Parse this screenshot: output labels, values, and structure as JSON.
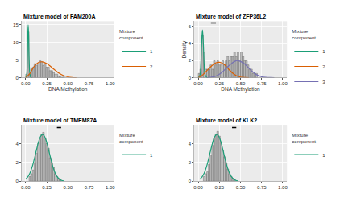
{
  "chart_data": [
    {
      "type": "histogram",
      "title": "Mixture model of FAM200A",
      "x_label": "DNA Methylation",
      "bins": [
        0,
        0.02,
        0.04,
        0.06,
        0.08,
        0.1,
        0.12,
        0.14,
        0.16,
        0.18,
        0.2,
        0.22,
        0.24,
        0.26,
        0.28,
        0.3,
        0.32,
        0.34,
        0.36,
        0.38,
        0.4,
        0.42,
        0.44,
        0.46
      ],
      "counts": [
        1,
        13,
        1,
        2.5,
        3,
        4,
        3.5,
        4,
        5,
        4.5,
        3.5,
        4,
        3,
        3,
        2,
        2,
        1.5,
        1,
        1,
        0.5,
        0.5,
        0,
        0.5
      ],
      "color": "#bdbdbd",
      "legend_title": "Mixture component",
      "series": [
        {
          "name": "1",
          "color": "#1b9e77",
          "x": [
            0,
            0.01,
            0.02,
            0.025,
            0.03,
            0.035,
            0.04,
            0.05,
            0.06,
            0.08
          ],
          "values": [
            0,
            0.5,
            6,
            12,
            15,
            12,
            6,
            1,
            0.1,
            0
          ]
        },
        {
          "name": "2",
          "color": "#d95f02",
          "x": [
            0,
            0.05,
            0.1,
            0.15,
            0.2,
            0.25,
            0.3,
            0.35,
            0.4,
            0.45,
            0.5,
            0.55,
            0.6
          ],
          "values": [
            0,
            1.2,
            3.2,
            4.3,
            4.5,
            4.0,
            3.1,
            2.1,
            1.2,
            0.6,
            0.25,
            0.08,
            0
          ]
        }
      ],
      "xlim": [
        -0.05,
        1.05
      ],
      "xticks": [
        {
          "value": 0,
          "label": "0.00"
        },
        {
          "value": 0.25,
          "label": "0.25"
        },
        {
          "value": 0.5,
          "label": "0.50"
        },
        {
          "value": 0.75,
          "label": "0.75"
        },
        {
          "value": 1,
          "label": "1.00"
        }
      ],
      "ylim": [
        0,
        16
      ],
      "yticks": [
        0,
        5,
        10,
        15
      ],
      "grid": true,
      "legend": "right"
    },
    {
      "type": "histogram",
      "title": "Mixture model of ZFP36L2",
      "x_label": "DNA Methylation",
      "y_label": "Density",
      "bins": [
        0,
        0.02,
        0.04,
        0.06,
        0.08,
        0.1,
        0.12,
        0.14,
        0.16,
        0.18,
        0.2,
        0.22,
        0.24,
        0.26,
        0.28,
        0.3,
        0.32,
        0.34,
        0.36,
        0.38,
        0.4,
        0.42,
        0.44,
        0.46,
        0.48,
        0.5,
        0.52,
        0.54,
        0.56,
        0.58,
        0.6,
        0.62,
        0.64,
        0.66,
        0.68,
        0.7
      ],
      "counts": [
        0.5,
        1,
        5,
        3,
        1,
        1,
        1,
        1.5,
        1,
        2,
        1.5,
        2,
        1.5,
        1.5,
        2,
        1.5,
        2,
        2.5,
        2,
        2.5,
        2.5,
        3,
        2.5,
        3,
        2,
        3,
        2.5,
        2,
        2,
        1.5,
        1,
        1,
        0.5,
        0.5,
        0.5
      ],
      "color": "#bdbdbd",
      "legend_title": "Mixture component",
      "series": [
        {
          "name": "1",
          "color": "#1b9e77",
          "x": [
            0,
            0.02,
            0.03,
            0.04,
            0.05,
            0.06,
            0.07,
            0.08,
            0.1,
            0.12
          ],
          "values": [
            0,
            0.3,
            1.5,
            4,
            5.6,
            4,
            1.5,
            0.4,
            0.02,
            0
          ]
        },
        {
          "name": "2",
          "color": "#d95f02",
          "x": [
            0,
            0.05,
            0.1,
            0.15,
            0.2,
            0.25,
            0.3,
            0.35,
            0.4,
            0.45,
            0.5,
            0.55,
            0.6
          ],
          "values": [
            0,
            0.3,
            0.8,
            1.3,
            1.7,
            1.8,
            1.6,
            1.1,
            0.6,
            0.25,
            0.08,
            0.02,
            0
          ]
        },
        {
          "name": "3",
          "color": "#7570b3",
          "x": [
            0.1,
            0.15,
            0.2,
            0.25,
            0.3,
            0.35,
            0.4,
            0.45,
            0.5,
            0.55,
            0.6,
            0.65,
            0.7,
            0.75,
            0.8,
            0.85,
            0.9
          ],
          "values": [
            0,
            0.05,
            0.15,
            0.4,
            0.8,
            1.3,
            1.7,
            2.0,
            1.9,
            1.6,
            1.1,
            0.65,
            0.3,
            0.12,
            0.04,
            0.01,
            0
          ]
        }
      ],
      "interval": {
        "x": [
          0.15,
          0.21
        ],
        "y": 6.4
      },
      "xlim": [
        -0.05,
        1.05
      ],
      "xticks": [
        {
          "value": 0,
          "label": "0.00"
        },
        {
          "value": 0.25,
          "label": "0.25"
        },
        {
          "value": 0.5,
          "label": "0.50"
        },
        {
          "value": 0.75,
          "label": "0.75"
        },
        {
          "value": 1,
          "label": "1.00"
        }
      ],
      "ylim": [
        0,
        6.6
      ],
      "yticks": [
        0,
        2,
        4,
        6
      ],
      "grid": true,
      "legend": "right"
    },
    {
      "type": "histogram",
      "title": "Mixture model of TMEM87A",
      "bins": [
        0.04,
        0.06,
        0.08,
        0.1,
        0.12,
        0.14,
        0.16,
        0.18,
        0.2,
        0.22,
        0.24,
        0.26,
        0.28,
        0.3,
        0.32,
        0.34,
        0.36,
        0.38,
        0.4,
        0.42
      ],
      "counts": [
        0.5,
        0.8,
        1.2,
        2,
        3,
        4,
        4.5,
        5,
        5.2,
        4.6,
        4,
        3.5,
        2.5,
        2,
        1.5,
        0.8,
        0.5,
        0.3,
        0.2
      ],
      "color": "#bdbdbd",
      "legend_title": "Mixture component",
      "series": [
        {
          "name": "1",
          "color": "#1b9e77",
          "x": [
            0,
            0.025,
            0.05,
            0.075,
            0.1,
            0.125,
            0.15,
            0.175,
            0.2,
            0.225,
            0.25,
            0.275,
            0.3,
            0.325,
            0.35,
            0.375,
            0.4,
            0.425,
            0.45
          ],
          "values": [
            0.22,
            0.46,
            0.86,
            1.47,
            2.29,
            3.22,
            4.11,
            4.75,
            4.99,
            4.75,
            4.11,
            3.22,
            2.29,
            1.47,
            0.86,
            0.46,
            0.22,
            0.09,
            0.03
          ]
        }
      ],
      "interval": {
        "x": [
          0.37,
          0.42
        ],
        "y": 5.7
      },
      "xlim": [
        -0.05,
        1.05
      ],
      "xticks": [
        {
          "value": 0,
          "label": "0.00"
        },
        {
          "value": 0.25,
          "label": "0.25"
        },
        {
          "value": 0.5,
          "label": "0.50"
        },
        {
          "value": 0.75,
          "label": "0.75"
        },
        {
          "value": 1,
          "label": "1.00"
        }
      ],
      "ylim": [
        0,
        6
      ],
      "yticks": [
        0,
        2,
        4
      ],
      "grid": true,
      "legend": "right"
    },
    {
      "type": "histogram",
      "title": "Mixture model of KLK2",
      "bins": [
        0.06,
        0.08,
        0.1,
        0.12,
        0.14,
        0.16,
        0.18,
        0.2,
        0.22,
        0.24,
        0.26,
        0.28,
        0.3,
        0.32,
        0.34,
        0.36,
        0.38,
        0.4,
        0.42,
        0.44
      ],
      "counts": [
        0.5,
        0.8,
        1,
        1.8,
        2.8,
        3.8,
        4.6,
        5,
        5.3,
        4.8,
        4.2,
        3.3,
        2.6,
        2,
        1.3,
        0.8,
        0.5,
        0.3,
        0.2
      ],
      "color": "#bdbdbd",
      "legend_title": "Mixture component",
      "series": [
        {
          "name": "1",
          "color": "#1b9e77",
          "x": [
            0.02,
            0.045,
            0.07,
            0.095,
            0.12,
            0.145,
            0.17,
            0.195,
            0.22,
            0.245,
            0.27,
            0.295,
            0.32,
            0.345,
            0.37,
            0.395,
            0.42,
            0.445,
            0.47
          ],
          "values": [
            0.22,
            0.46,
            0.86,
            1.47,
            2.29,
            3.22,
            4.11,
            4.75,
            4.99,
            4.75,
            4.11,
            3.22,
            2.29,
            1.47,
            0.86,
            0.46,
            0.22,
            0.09,
            0.03
          ]
        }
      ],
      "interval": {
        "x": [
          0.4,
          0.45
        ],
        "y": 5.7
      },
      "xlim": [
        -0.05,
        1.05
      ],
      "xticks": [
        {
          "value": 0,
          "label": "0.00"
        },
        {
          "value": 0.25,
          "label": "0.25"
        },
        {
          "value": 0.5,
          "label": "0.50"
        },
        {
          "value": 0.75,
          "label": "0.75"
        },
        {
          "value": 1,
          "label": "1.00"
        }
      ],
      "ylim": [
        0,
        6
      ],
      "yticks": [
        0,
        2,
        4
      ],
      "grid": true,
      "legend": "right"
    }
  ]
}
